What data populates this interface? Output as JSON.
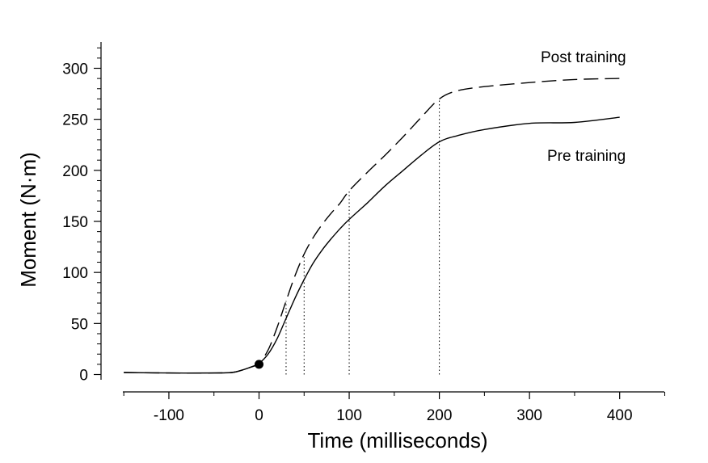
{
  "chart_data": {
    "type": "line",
    "xlabel": "Time (milliseconds)",
    "ylabel": "Moment (N·m)",
    "xlim": [
      -150,
      450
    ],
    "ylim": [
      -8,
      325
    ],
    "x_ticks": [
      -100,
      0,
      100,
      200,
      300,
      400
    ],
    "y_ticks": [
      0,
      50,
      100,
      150,
      200,
      250,
      300
    ],
    "series": [
      {
        "name": "Pre training",
        "style": "solid",
        "x": [
          -150,
          -100,
          -50,
          -30,
          -20,
          -10,
          0,
          10,
          20,
          30,
          40,
          50,
          60,
          70,
          80,
          90,
          100,
          120,
          140,
          160,
          180,
          200,
          220,
          250,
          300,
          350,
          400
        ],
        "y": [
          2,
          1.5,
          1.5,
          2,
          4,
          7,
          11,
          20,
          35,
          55,
          75,
          93,
          109,
          122,
          133,
          143,
          152,
          168,
          185,
          200,
          215,
          228,
          234,
          240,
          246,
          247,
          252
        ]
      },
      {
        "name": "Post training",
        "style": "dashed",
        "x": [
          -150,
          -100,
          -50,
          -30,
          -20,
          -10,
          0,
          10,
          20,
          30,
          40,
          50,
          60,
          70,
          80,
          90,
          100,
          120,
          140,
          160,
          180,
          200,
          220,
          250,
          300,
          350,
          400
        ],
        "y": [
          2,
          1.5,
          1.5,
          2,
          4,
          7,
          11,
          24,
          46,
          72,
          97,
          118,
          134,
          147,
          158,
          168,
          180,
          198,
          215,
          233,
          252,
          270,
          278,
          282,
          286,
          289,
          290
        ]
      }
    ],
    "vertical_markers": [
      30,
      50,
      100,
      200
    ],
    "onset_point": {
      "x": 0,
      "y": 10
    },
    "grid": false
  },
  "annotations": {
    "post": "Post training",
    "pre": "Pre training"
  }
}
